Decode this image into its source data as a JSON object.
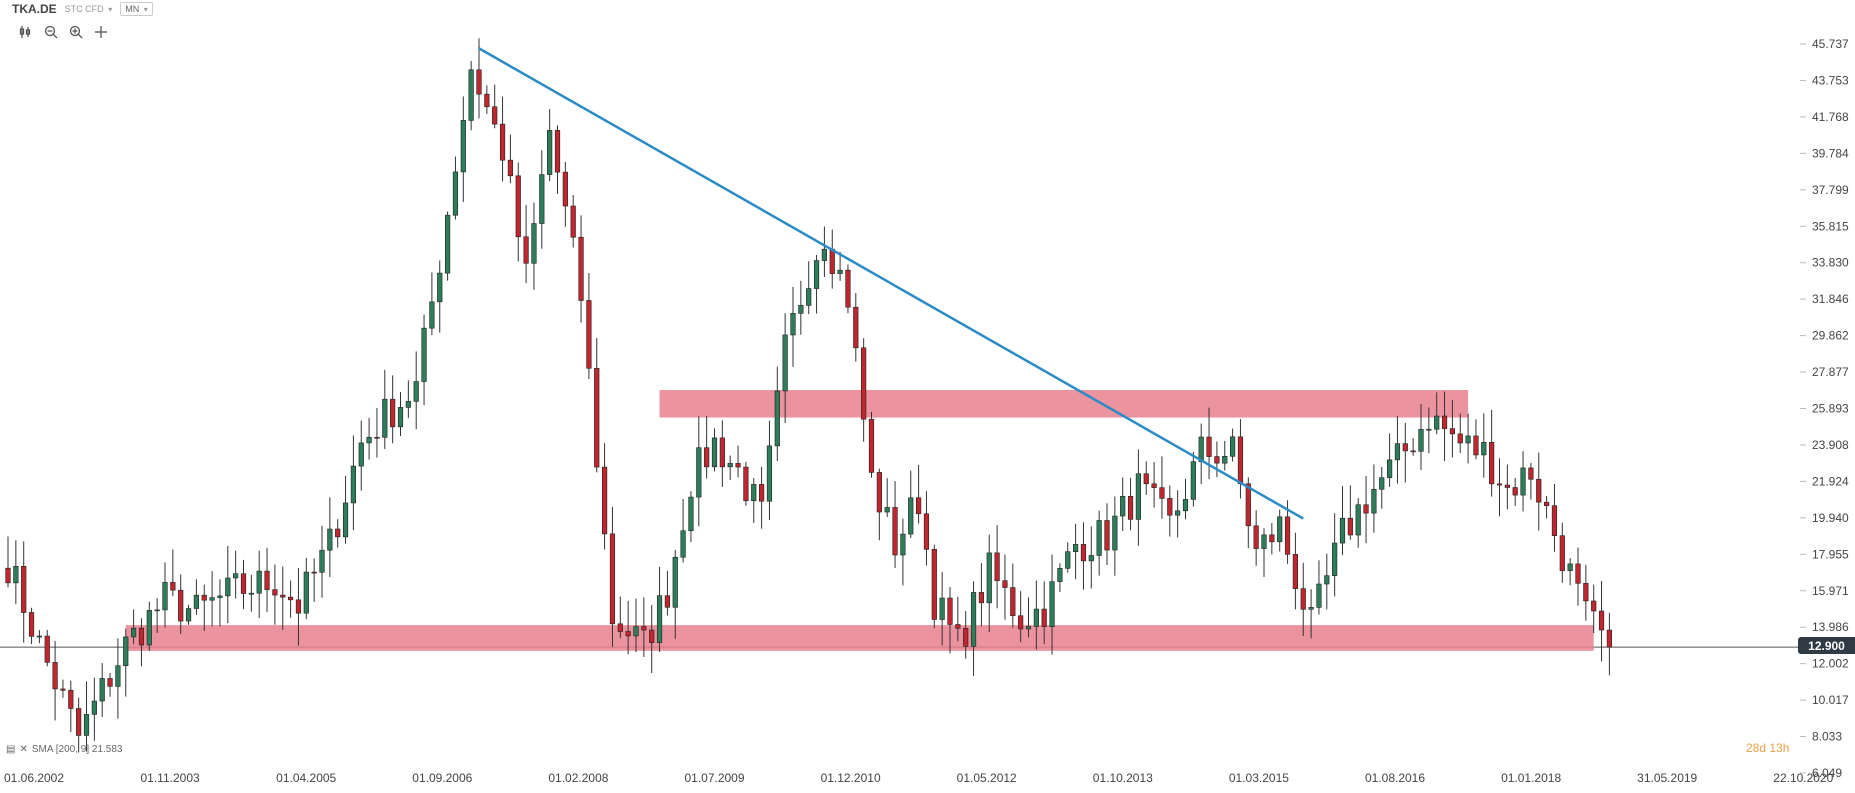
{
  "header": {
    "symbol": "TKA.DE",
    "instrument": "STC CFD",
    "timeframe": "MN"
  },
  "tools": [
    {
      "name": "candle-type-icon"
    },
    {
      "name": "zoom-out-icon"
    },
    {
      "name": "zoom-in-icon"
    },
    {
      "name": "crosshair-icon"
    }
  ],
  "indicator": {
    "label": "SMA [200, 9] 21.583"
  },
  "price_tag": "12.900",
  "countdown": "28d 13h",
  "colors": {
    "bull": "#2e7d5a",
    "bear": "#c0262d",
    "trendline": "#2a8bc6",
    "zone": "#e9808f",
    "price_line": "#555555"
  },
  "chart_data": {
    "type": "candlestick",
    "y_ticks": [
      "45.737",
      "43.753",
      "41.768",
      "39.784",
      "37.799",
      "35.815",
      "33.830",
      "31.846",
      "29.862",
      "27.877",
      "25.893",
      "23.908",
      "21.924",
      "19.940",
      "17.955",
      "15.971",
      "13.986",
      "12.002",
      "10.017",
      "8.033",
      "6.049"
    ],
    "x_ticks": [
      "01.06.2002",
      "01.11.2003",
      "01.04.2005",
      "01.09.2006",
      "01.02.2008",
      "01.07.2009",
      "01.12.2010",
      "01.05.2012",
      "01.10.2013",
      "01.03.2015",
      "01.08.2016",
      "01.01.2018",
      "31.05.2019",
      "22.10.2020"
    ],
    "ylim": [
      6.049,
      45.737
    ],
    "current_price": 12.9,
    "trendline": {
      "from": {
        "date": "2007-06",
        "price": 45.5
      },
      "to": {
        "date": "2016-03",
        "price": 19.9
      }
    },
    "zones": [
      {
        "from_date": "2009-05",
        "to_date": "2017-12",
        "low": 25.4,
        "high": 26.9
      },
      {
        "from_date": "2003-09",
        "to_date": "2019-04",
        "low": 12.7,
        "high": 14.1
      }
    ],
    "anchor_points": [
      [
        "2002-06",
        17.5
      ],
      [
        "2002-10",
        13.0
      ],
      [
        "2003-03",
        8.0
      ],
      [
        "2003-09",
        13.0
      ],
      [
        "2004-02",
        15.5
      ],
      [
        "2004-06",
        14.8
      ],
      [
        "2004-11",
        16.0
      ],
      [
        "2005-04",
        16.5
      ],
      [
        "2005-07",
        15.2
      ],
      [
        "2005-11",
        18.5
      ],
      [
        "2006-03",
        24.0
      ],
      [
        "2006-06",
        25.5
      ],
      [
        "2006-10",
        27.0
      ],
      [
        "2007-01",
        34.0
      ],
      [
        "2007-05",
        44.5
      ],
      [
        "2007-09",
        40.0
      ],
      [
        "2007-12",
        33.0
      ],
      [
        "2008-03",
        41.0
      ],
      [
        "2008-07",
        32.0
      ],
      [
        "2008-11",
        14.5
      ],
      [
        "2009-03",
        13.0
      ],
      [
        "2009-06",
        16.0
      ],
      [
        "2009-09",
        22.0
      ],
      [
        "2009-12",
        24.0
      ],
      [
        "2010-03",
        22.5
      ],
      [
        "2010-06",
        20.0
      ],
      [
        "2010-09",
        29.0
      ],
      [
        "2010-12",
        33.5
      ],
      [
        "2011-02",
        35.5
      ],
      [
        "2011-05",
        32.0
      ],
      [
        "2011-08",
        22.0
      ],
      [
        "2011-11",
        18.5
      ],
      [
        "2012-02",
        21.0
      ],
      [
        "2012-04",
        15.5
      ],
      [
        "2012-07",
        13.0
      ],
      [
        "2012-11",
        17.0
      ],
      [
        "2013-03",
        14.5
      ],
      [
        "2013-06",
        15.0
      ],
      [
        "2013-10",
        18.5
      ],
      [
        "2014-02",
        19.0
      ],
      [
        "2014-06",
        21.5
      ],
      [
        "2014-10",
        19.5
      ],
      [
        "2015-02",
        23.5
      ],
      [
        "2015-06",
        23.5
      ],
      [
        "2015-09",
        18.0
      ],
      [
        "2015-12",
        19.5
      ],
      [
        "2016-04",
        14.0
      ],
      [
        "2016-08",
        19.0
      ],
      [
        "2016-11",
        21.0
      ],
      [
        "2017-03",
        23.0
      ],
      [
        "2017-07",
        25.5
      ],
      [
        "2017-11",
        24.0
      ],
      [
        "2018-02",
        23.5
      ],
      [
        "2018-05",
        21.5
      ],
      [
        "2018-08",
        22.5
      ],
      [
        "2018-12",
        18.0
      ],
      [
        "2019-03",
        14.5
      ],
      [
        "2019-06",
        12.9
      ]
    ]
  }
}
